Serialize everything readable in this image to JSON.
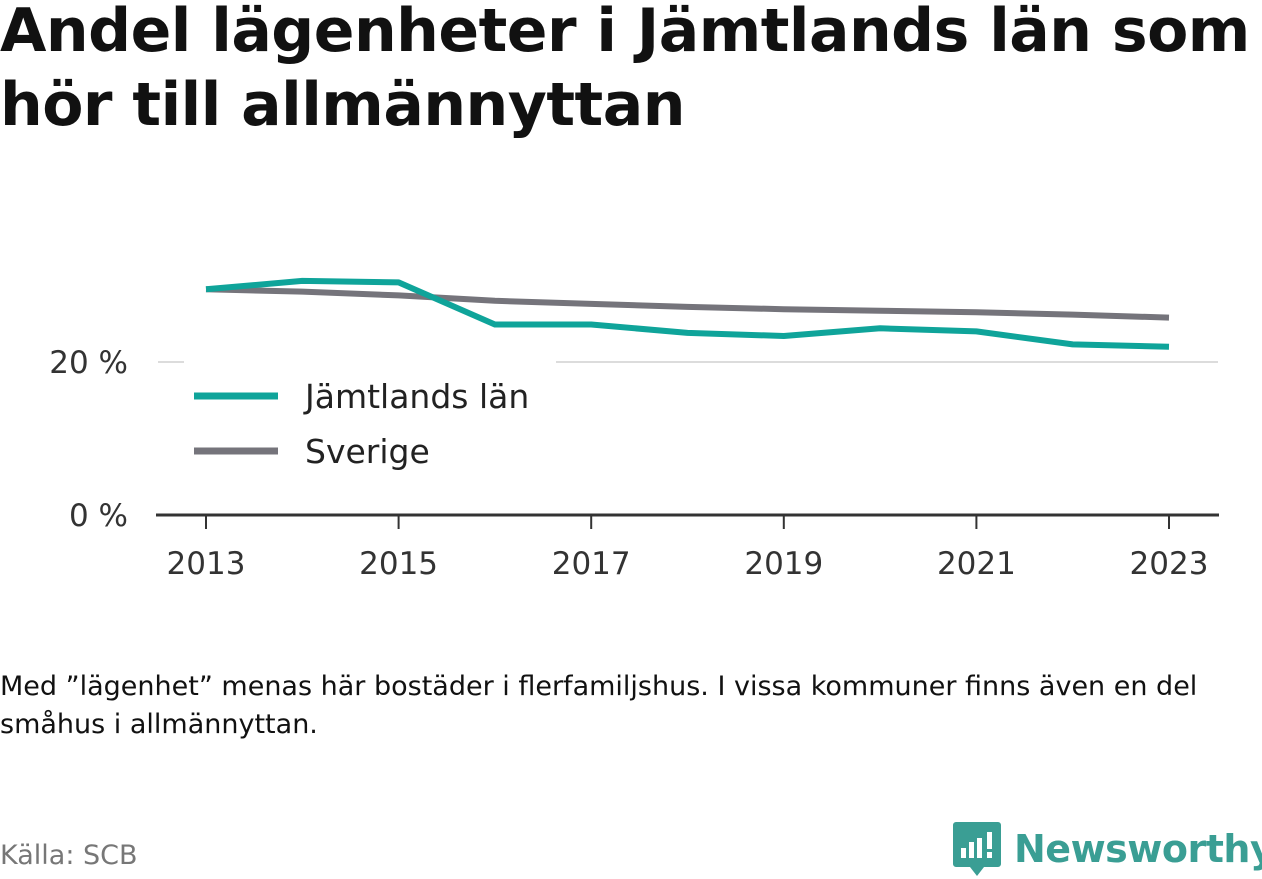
{
  "title": "Andel lägenheter i Jämtlands län som hör till allmännyttan",
  "note": "Med ”lägenhet” menas här bostäder i flerfamiljshus. I vissa kommuner finns även en del småhus i allmännyttan.",
  "source": "Källa: SCB",
  "brand": "Newsworthy",
  "colors": {
    "jamtland": "#0fa49a",
    "sverige": "#75747b",
    "brand": "#3a9e94"
  },
  "chart_data": {
    "type": "line",
    "x": [
      2013,
      2014,
      2015,
      2016,
      2017,
      2018,
      2019,
      2020,
      2021,
      2022,
      2023
    ],
    "series": [
      {
        "name": "Jämtlands län",
        "values": [
          29.5,
          30.6,
          30.4,
          24.9,
          24.9,
          23.8,
          23.4,
          24.4,
          24.0,
          22.3,
          22.0
        ]
      },
      {
        "name": "Sverige",
        "values": [
          29.5,
          29.2,
          28.7,
          28.0,
          27.6,
          27.2,
          26.9,
          26.7,
          26.5,
          26.2,
          25.8
        ]
      }
    ],
    "y_ticks": [
      {
        "value": 0,
        "label": "0 %"
      },
      {
        "value": 20,
        "label": "20 %"
      }
    ],
    "x_ticks": [
      2013,
      2015,
      2017,
      2019,
      2021,
      2023
    ],
    "ylim": [
      0,
      35
    ],
    "legend_position": "inside-bottom-left",
    "grid": true
  }
}
